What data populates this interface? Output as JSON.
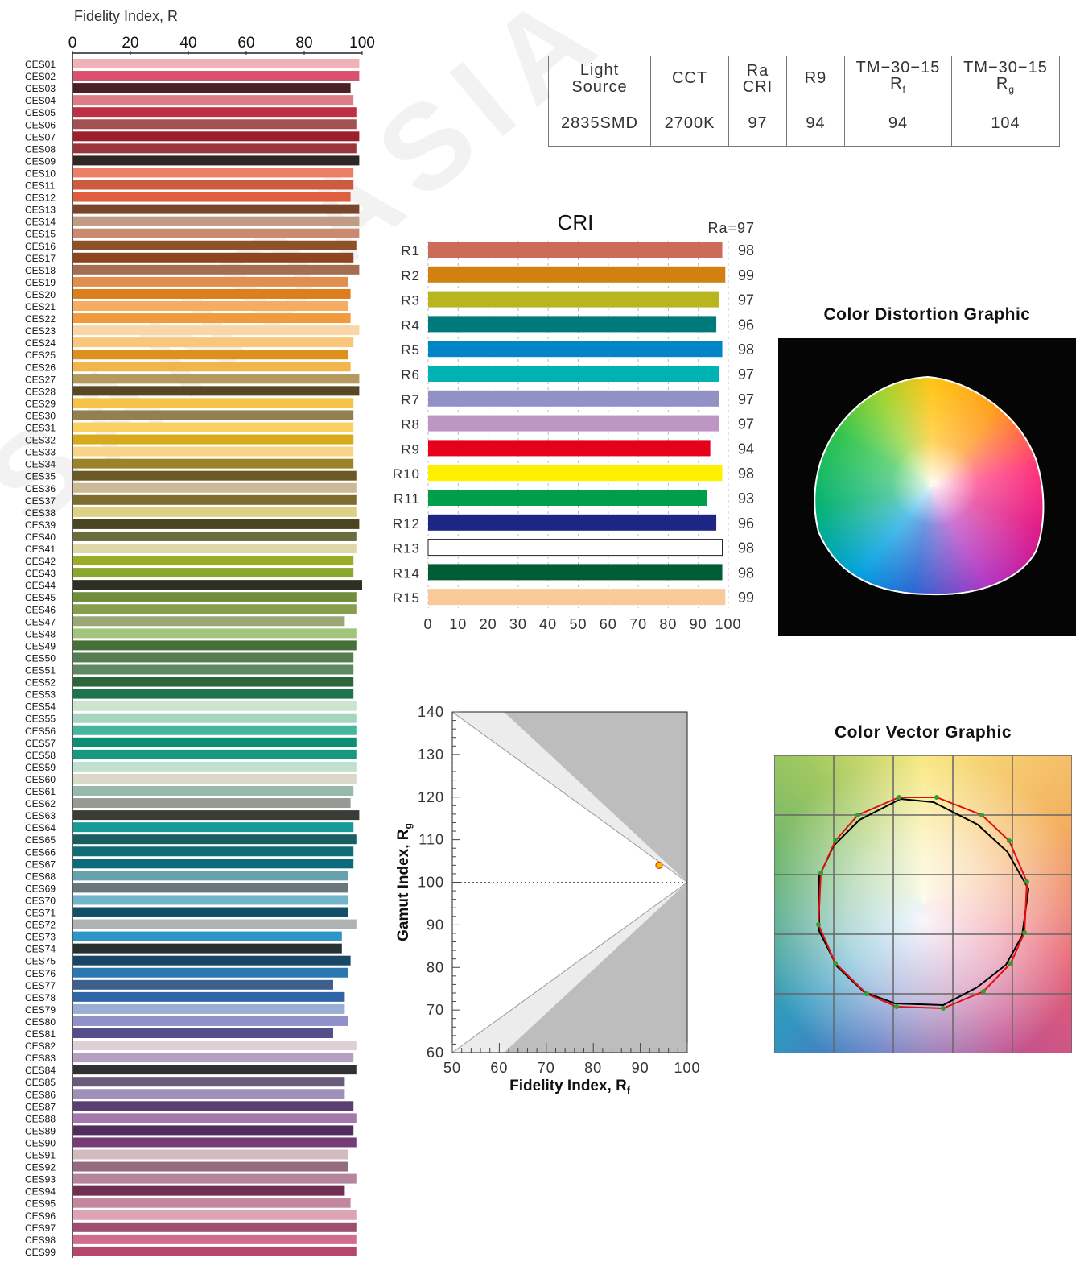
{
  "watermark": "SANDASIA",
  "spec_table": {
    "headers": [
      "Light Source",
      "CCT",
      "Ra CRI",
      "R9",
      "TM-30-15 Rf",
      "TM-30-15 Rg"
    ],
    "header_lines": [
      [
        "Light",
        "Source"
      ],
      [
        "CCT"
      ],
      [
        "Ra",
        "CRI"
      ],
      [
        "R9"
      ],
      [
        "TM−30−15",
        "R",
        "f"
      ],
      [
        "TM−30−15",
        "R",
        "g"
      ]
    ],
    "values": [
      "2835SMD",
      "2700K",
      "97",
      "94",
      "94",
      "104"
    ]
  },
  "titles": {
    "distortion": "Color Distortion Graphic",
    "vector": "Color Vector Graphic"
  },
  "chart_data": [
    {
      "type": "bar",
      "orientation": "horizontal",
      "title": "",
      "xlabel": "Fidelity Index, R",
      "xlim": [
        0,
        100
      ],
      "xticks": [
        0,
        20,
        40,
        60,
        80,
        100
      ],
      "categories": [
        "CES01",
        "CES02",
        "CES03",
        "CES04",
        "CES05",
        "CES06",
        "CES07",
        "CES08",
        "CES09",
        "CES10",
        "CES11",
        "CES12",
        "CES13",
        "CES14",
        "CES15",
        "CES16",
        "CES17",
        "CES18",
        "CES19",
        "CES20",
        "CES21",
        "CES22",
        "CES23",
        "CES24",
        "CES25",
        "CES26",
        "CES27",
        "CES28",
        "CES29",
        "CES30",
        "CES31",
        "CES32",
        "CES33",
        "CES34",
        "CES35",
        "CES36",
        "CES37",
        "CES38",
        "CES39",
        "CES40",
        "CES41",
        "CES42",
        "CES43",
        "CES44",
        "CES45",
        "CES46",
        "CES47",
        "CES48",
        "CES49",
        "CES50",
        "CES51",
        "CES52",
        "CES53",
        "CES54",
        "CES55",
        "CES56",
        "CES57",
        "CES58",
        "CES59",
        "CES60",
        "CES61",
        "CES62",
        "CES63",
        "CES64",
        "CES65",
        "CES66",
        "CES67",
        "CES68",
        "CES69",
        "CES70",
        "CES71",
        "CES72",
        "CES73",
        "CES74",
        "CES75",
        "CES76",
        "CES77",
        "CES78",
        "CES79",
        "CES80",
        "CES81",
        "CES82",
        "CES83",
        "CES84",
        "CES85",
        "CES86",
        "CES87",
        "CES88",
        "CES89",
        "CES90",
        "CES91",
        "CES92",
        "CES93",
        "CES94",
        "CES95",
        "CES96",
        "CES97",
        "CES98",
        "CES99"
      ],
      "values": [
        99,
        99,
        96,
        97,
        98,
        98,
        99,
        98,
        99,
        97,
        97,
        96,
        99,
        99,
        99,
        98,
        97,
        99,
        95,
        96,
        95,
        96,
        99,
        97,
        95,
        96,
        99,
        99,
        97,
        97,
        97,
        97,
        97,
        97,
        98,
        98,
        98,
        98,
        99,
        98,
        98,
        97,
        97,
        100,
        98,
        98,
        94,
        98,
        98,
        97,
        97,
        97,
        97,
        98,
        98,
        98,
        98,
        98,
        98,
        98,
        97,
        96,
        99,
        97,
        98,
        97,
        97,
        95,
        95,
        95,
        95,
        98,
        93,
        93,
        96,
        95,
        90,
        94,
        94,
        95,
        90,
        98,
        97,
        98,
        94,
        94,
        97,
        98,
        97,
        98,
        95,
        95,
        98,
        94,
        96,
        98,
        98,
        98,
        98
      ],
      "colors": [
        "#f1b1b9",
        "#d9516e",
        "#4a2024",
        "#dc7d85",
        "#be2f46",
        "#a55050",
        "#9b1f2c",
        "#9a353a",
        "#302624",
        "#eb8066",
        "#cd5b3f",
        "#e05e40",
        "#7b452a",
        "#c19b84",
        "#cb8a6f",
        "#8f5127",
        "#8d4620",
        "#a46f51",
        "#e18f4f",
        "#dd7e1d",
        "#f5ae61",
        "#f29b3d",
        "#f9d6a7",
        "#f9c67c",
        "#dd901a",
        "#f2b54b",
        "#b49a5e",
        "#574722",
        "#f6c346",
        "#94804c",
        "#fad062",
        "#d9a91c",
        "#f6d586",
        "#9d8327",
        "#6a5a26",
        "#ccb996",
        "#7e6d2c",
        "#ddd183",
        "#494520",
        "#6a6c3c",
        "#ded8a6",
        "#9aac25",
        "#8ba82c",
        "#2e2e22",
        "#6f8f3c",
        "#879e4d",
        "#9ba777",
        "#a2c47b",
        "#46703a",
        "#567c51",
        "#5e8a63",
        "#2b6638",
        "#1d744c",
        "#cde4cc",
        "#a5d5be",
        "#43b79c",
        "#0c8e74",
        "#16997e",
        "#c1e0d0",
        "#dad9c9",
        "#97b9ab",
        "#959b92",
        "#393c37",
        "#159a95",
        "#1a5f60",
        "#106c76",
        "#0d6a7c",
        "#67a1ad",
        "#68787d",
        "#72b4cc",
        "#12506a",
        "#adb3b3",
        "#2f95c6",
        "#27312f",
        "#194666",
        "#2a78b3",
        "#3e5f8e",
        "#2e65a6",
        "#9aaed3",
        "#8f92c8",
        "#554d8c",
        "#ddced7",
        "#b3a0c1",
        "#323033",
        "#6b5a7c",
        "#a08fbb",
        "#5b3f72",
        "#a478ac",
        "#512d5e",
        "#773c77",
        "#d2bbbf",
        "#946b7f",
        "#b5859e",
        "#6f2e52",
        "#c5879e",
        "#dea4b6",
        "#9d4e71",
        "#d16d8c",
        "#b5466e"
      ]
    },
    {
      "type": "bar",
      "orientation": "horizontal",
      "title": "CRI",
      "annotation": "Ra=97",
      "xlim": [
        0,
        100
      ],
      "xticks": [
        0,
        10,
        20,
        30,
        40,
        50,
        60,
        70,
        80,
        90,
        100
      ],
      "categories": [
        "R1",
        "R2",
        "R3",
        "R4",
        "R5",
        "R6",
        "R7",
        "R8",
        "R9",
        "R10",
        "R11",
        "R12",
        "R13",
        "R14",
        "R15"
      ],
      "values": [
        98,
        99,
        97,
        96,
        98,
        97,
        97,
        97,
        94,
        98,
        93,
        96,
        98,
        98,
        99
      ],
      "colors": [
        "#cd6b5a",
        "#d2800f",
        "#b9b51e",
        "#00797a",
        "#0086c6",
        "#00b2b4",
        "#9291c5",
        "#be96c4",
        "#e5001c",
        "#fff000",
        "#009e4a",
        "#1c2687",
        "#ffffff",
        "#005e34",
        "#f9c999"
      ]
    },
    {
      "type": "scatter",
      "title": "",
      "xlabel": "Fidelity Index, R",
      "xlabel_sub": "f",
      "ylabel": "Gamut Index, R",
      "ylabel_sub": "g",
      "xlim": [
        50,
        100
      ],
      "ylim": [
        60,
        140
      ],
      "xticks": [
        50,
        60,
        70,
        80,
        90,
        100
      ],
      "yticks": [
        60,
        70,
        80,
        90,
        100,
        110,
        120,
        130,
        140
      ],
      "series": [
        {
          "x": [
            94
          ],
          "y": [
            104
          ]
        }
      ]
    }
  ]
}
